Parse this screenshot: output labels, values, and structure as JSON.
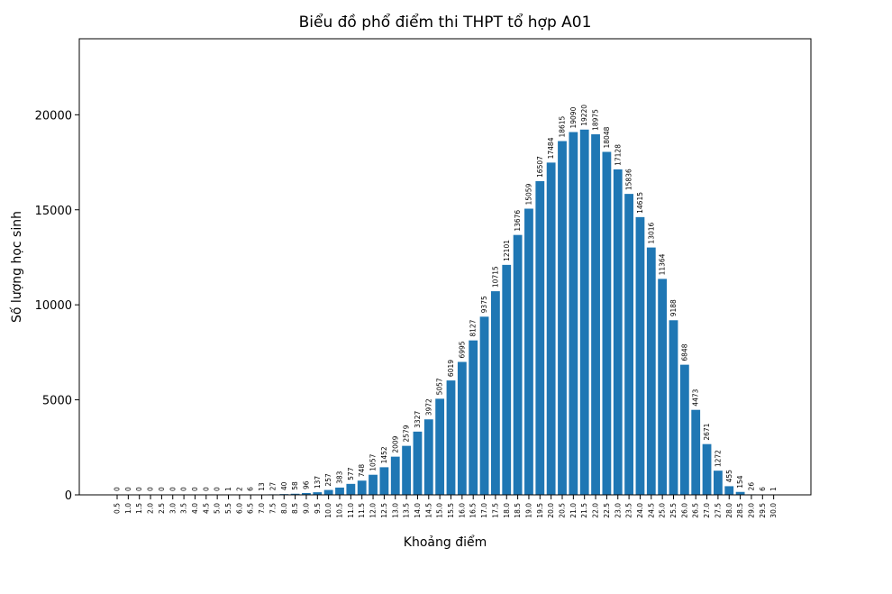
{
  "chart_data": {
    "type": "bar",
    "title": "Biểu đồ phổ điểm thi THPT tổ hợp A01",
    "xlabel": "Khoảng điểm",
    "ylabel": "Số lượng học sinh",
    "categories": [
      "0.5",
      "1.0",
      "1.5",
      "2.0",
      "2.5",
      "3.0",
      "3.5",
      "4.0",
      "4.5",
      "5.0",
      "5.5",
      "6.0",
      "6.5",
      "7.0",
      "7.5",
      "8.0",
      "8.5",
      "9.0",
      "9.5",
      "10.0",
      "10.5",
      "11.0",
      "11.5",
      "12.0",
      "12.5",
      "13.0",
      "13.5",
      "14.0",
      "14.5",
      "15.0",
      "15.5",
      "16.0",
      "16.5",
      "17.0",
      "17.5",
      "18.0",
      "18.5",
      "19.0",
      "19.5",
      "20.0",
      "20.5",
      "21.0",
      "21.5",
      "22.0",
      "22.5",
      "23.0",
      "23.5",
      "24.0",
      "24.5",
      "25.0",
      "25.5",
      "26.0",
      "26.5",
      "27.0",
      "27.5",
      "28.0",
      "28.5",
      "29.0",
      "29.5",
      "30.0"
    ],
    "values": [
      0,
      0,
      0,
      0,
      0,
      0,
      0,
      0,
      0,
      0,
      1,
      2,
      6,
      13,
      27,
      40,
      58,
      96,
      137,
      257,
      383,
      577,
      748,
      1057,
      1452,
      2009,
      2579,
      3327,
      3972,
      5057,
      6019,
      6995,
      8127,
      9375,
      10715,
      12101,
      13676,
      15059,
      16507,
      17484,
      18615,
      19090,
      19220,
      18975,
      18048,
      17128,
      15836,
      14615,
      13016,
      11364,
      9188,
      6848,
      4473,
      2671,
      1272,
      455,
      154,
      26,
      6,
      1
    ],
    "ylim": [
      0,
      24000
    ],
    "yticks": [
      0,
      5000,
      10000,
      15000,
      20000
    ],
    "grid": false,
    "bar_color": "#1f77b4"
  }
}
